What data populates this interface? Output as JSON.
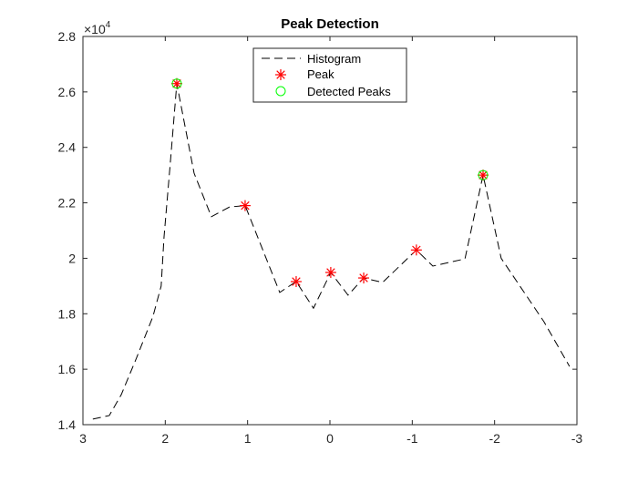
{
  "chart_data": {
    "type": "line",
    "title": "Peak Detection",
    "xlabel": "",
    "ylabel": "",
    "xlim": [
      3,
      -3
    ],
    "x_reversed": true,
    "ylim": [
      14000,
      28000
    ],
    "y_exponent_label": "×10",
    "y_exponent_power": "4",
    "xticks": [
      3,
      2,
      1,
      0,
      -1,
      -2,
      -3
    ],
    "xtick_labels": [
      "3",
      "2",
      "1",
      "0",
      "-1",
      "-2",
      "-3"
    ],
    "yticks": [
      14000,
      16000,
      18000,
      20000,
      22000,
      24000,
      26000,
      28000
    ],
    "ytick_labels": [
      "1.4",
      "1.6",
      "1.8",
      "2",
      "2.2",
      "2.4",
      "2.6",
      "2.8"
    ],
    "grid": false,
    "legend_position": "top-center",
    "series": [
      {
        "name": "Histogram",
        "style": "dashed-line",
        "color": "#000000",
        "x": [
          2.88,
          2.68,
          2.535,
          2.35,
          2.15,
          2.05,
          2.015,
          1.94,
          1.86,
          1.65,
          1.44,
          1.22,
          1.03,
          0.61,
          0.41,
          0.2,
          -0.01,
          -0.22,
          -0.41,
          -0.64,
          -1.05,
          -1.25,
          -1.64,
          -1.86,
          -2.08,
          -2.6,
          -2.91
        ],
        "y": [
          14200,
          14330,
          15080,
          16400,
          17900,
          19000,
          20770,
          23400,
          26300,
          23070,
          21500,
          21850,
          21900,
          18770,
          19160,
          18200,
          19490,
          18670,
          19290,
          19130,
          20300,
          19720,
          19980,
          23000,
          20000,
          17710,
          16100
        ]
      },
      {
        "name": "Peak",
        "style": "asterisk-marker",
        "color": "#ff0000",
        "x": [
          1.86,
          1.03,
          0.41,
          -0.01,
          -0.41,
          -1.05,
          -1.86
        ],
        "y": [
          26300,
          21900,
          19160,
          19490,
          19290,
          20300,
          23000
        ]
      },
      {
        "name": "Detected Peaks",
        "style": "circle-marker",
        "color": "#00ff00",
        "x": [
          1.86,
          -1.86
        ],
        "y": [
          26300,
          23000
        ]
      }
    ]
  }
}
